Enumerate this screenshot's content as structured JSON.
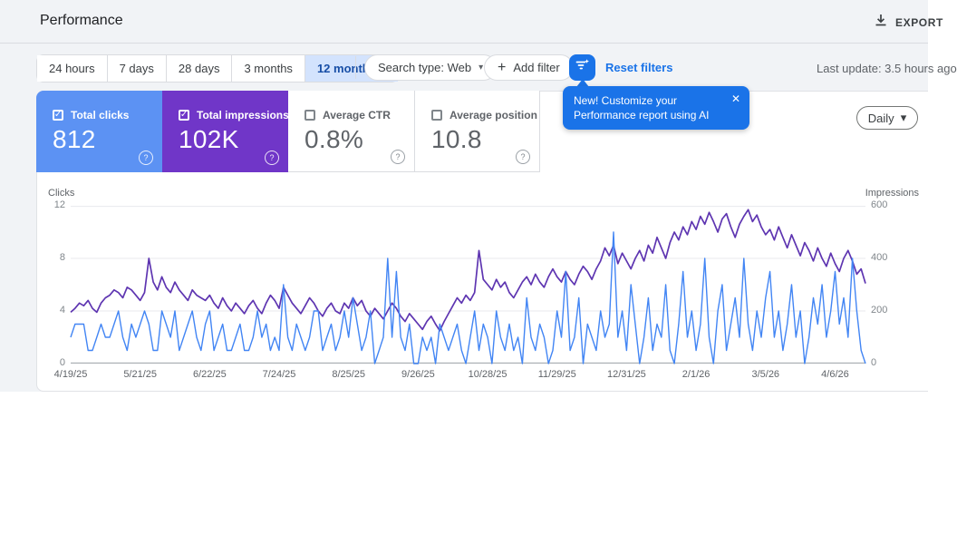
{
  "header": {
    "title": "Performance",
    "export_label": "EXPORT"
  },
  "toolbar": {
    "date_ranges": [
      "24 hours",
      "7 days",
      "28 days",
      "3 months",
      "12 months"
    ],
    "selected_range": "12 months",
    "search_type_label": "Search type: Web",
    "add_filter_label": "Add filter",
    "reset_filters_label": "Reset filters",
    "last_update": "Last update: 3.5 hours ago"
  },
  "metrics": [
    {
      "label": "Total clicks",
      "value": "812",
      "selected": true,
      "color": "#5c92f3"
    },
    {
      "label": "Total impressions",
      "value": "102K",
      "selected": true,
      "color": "#7036c8"
    },
    {
      "label": "Average CTR",
      "value": "0.8%",
      "selected": false,
      "color": ""
    },
    {
      "label": "Average position",
      "value": "10.8",
      "selected": false,
      "color": ""
    }
  ],
  "promo_tooltip": {
    "line1": "New! Customize your",
    "line2": "Performance report using AI",
    "close_label": "✕"
  },
  "granularity": {
    "label": "Daily"
  },
  "chart_data": {
    "type": "line",
    "grid": true,
    "left_axis": {
      "label": "Clicks",
      "ticks": [
        12,
        8,
        4,
        0
      ],
      "range": [
        0,
        12
      ]
    },
    "right_axis": {
      "label": "Impressions",
      "ticks": [
        600,
        400,
        200,
        0
      ],
      "range": [
        0,
        600
      ]
    },
    "x_tick_labels": [
      "4/19/25",
      "5/21/25",
      "6/22/25",
      "7/24/25",
      "8/25/25",
      "9/26/25",
      "10/28/25",
      "11/29/25",
      "12/31/25",
      "2/1/26",
      "3/5/26",
      "4/6/26"
    ],
    "x_tick_indices": [
      0,
      16,
      32,
      48,
      64,
      80,
      96,
      112,
      128,
      144,
      160,
      176
    ],
    "series": [
      {
        "name": "Total impressions",
        "axis": "right",
        "color": "#5e35b1",
        "values": [
          195,
          210,
          230,
          220,
          240,
          210,
          195,
          230,
          250,
          260,
          280,
          270,
          250,
          290,
          280,
          260,
          240,
          270,
          400,
          310,
          280,
          330,
          290,
          270,
          310,
          280,
          260,
          240,
          280,
          260,
          250,
          240,
          260,
          230,
          210,
          250,
          220,
          200,
          230,
          210,
          190,
          220,
          240,
          210,
          190,
          230,
          260,
          240,
          210,
          290,
          260,
          230,
          210,
          190,
          220,
          250,
          230,
          200,
          180,
          210,
          230,
          200,
          190,
          230,
          210,
          250,
          220,
          240,
          200,
          180,
          210,
          190,
          170,
          200,
          230,
          210,
          180,
          160,
          190,
          170,
          150,
          130,
          160,
          180,
          150,
          125,
          160,
          190,
          220,
          250,
          230,
          260,
          240,
          270,
          430,
          320,
          300,
          280,
          320,
          290,
          310,
          270,
          250,
          280,
          310,
          330,
          300,
          340,
          310,
          290,
          330,
          360,
          330,
          310,
          350,
          320,
          300,
          340,
          370,
          350,
          320,
          360,
          390,
          440,
          410,
          450,
          380,
          420,
          390,
          360,
          400,
          430,
          390,
          450,
          420,
          480,
          440,
          400,
          460,
          500,
          470,
          520,
          490,
          540,
          510,
          560,
          530,
          575,
          540,
          500,
          550,
          570,
          520,
          480,
          530,
          560,
          585,
          540,
          565,
          520,
          490,
          510,
          470,
          520,
          480,
          440,
          490,
          450,
          410,
          460,
          430,
          390,
          440,
          400,
          370,
          420,
          380,
          350,
          400,
          430,
          390,
          340,
          360,
          305
        ]
      },
      {
        "name": "Total clicks",
        "axis": "left",
        "color": "#4285f4",
        "values": [
          2,
          3,
          3,
          3,
          1,
          1,
          2,
          3,
          2,
          2,
          3,
          4,
          2,
          1,
          3,
          2,
          3,
          4,
          3,
          1,
          1,
          4,
          3,
          2,
          4,
          1,
          2,
          3,
          4,
          2,
          1,
          3,
          4,
          1,
          2,
          3,
          1,
          1,
          2,
          3,
          1,
          1,
          2,
          4,
          2,
          3,
          1,
          2,
          1,
          6,
          2,
          1,
          3,
          2,
          1,
          2,
          4,
          4,
          1,
          2,
          3,
          1,
          2,
          4,
          2,
          5,
          3,
          1,
          2,
          4,
          0,
          1,
          2,
          8,
          2,
          7,
          2,
          1,
          3,
          0,
          0,
          2,
          1,
          2,
          0,
          3,
          2,
          1,
          2,
          3,
          1,
          0,
          2,
          4,
          1,
          3,
          2,
          0,
          4,
          2,
          1,
          3,
          1,
          2,
          0,
          5,
          2,
          1,
          3,
          2,
          0,
          1,
          4,
          2,
          7,
          1,
          2,
          5,
          0,
          3,
          2,
          1,
          4,
          2,
          3,
          10,
          2,
          4,
          1,
          6,
          3,
          0,
          2,
          5,
          1,
          3,
          2,
          6,
          1,
          0,
          3,
          7,
          2,
          4,
          1,
          3,
          8,
          2,
          0,
          4,
          6,
          1,
          3,
          5,
          2,
          8,
          3,
          1,
          4,
          2,
          5,
          7,
          2,
          4,
          1,
          3,
          6,
          2,
          4,
          0,
          2,
          5,
          3,
          6,
          2,
          4,
          7,
          3,
          5,
          2,
          8,
          4,
          1,
          0
        ]
      }
    ]
  }
}
